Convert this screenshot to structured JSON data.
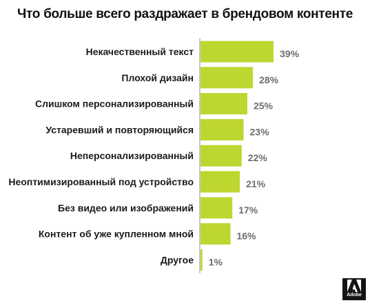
{
  "colors": {
    "bar": "#bed630",
    "axis": "#8c8c8c",
    "category_text": "#1a1a1a",
    "value_text": "#6d6d6d",
    "logo_bg": "#141414"
  },
  "logo": {
    "text": "Adobe",
    "icon": "adobe-logo-icon"
  },
  "chart_data": {
    "type": "bar",
    "orientation": "horizontal",
    "title": "Что больше всего раздражает в брендовом контенте",
    "categories": [
      "Некачественный текст",
      "Плохой дизайн",
      "Слишком персонализированный",
      "Устаревший и повторяющийся",
      "Неперсонализированный",
      "Неоптимизированный под устройство",
      "Без видео или изображений",
      "Контент об уже купленном мной",
      "Другое"
    ],
    "values": [
      39,
      28,
      25,
      23,
      22,
      21,
      17,
      16,
      1
    ],
    "value_labels": [
      "39%",
      "28%",
      "25%",
      "23%",
      "22%",
      "21%",
      "17%",
      "16%",
      "1%"
    ],
    "unit": "%",
    "xlim": [
      0,
      39
    ],
    "grid": false,
    "legend": "none"
  }
}
